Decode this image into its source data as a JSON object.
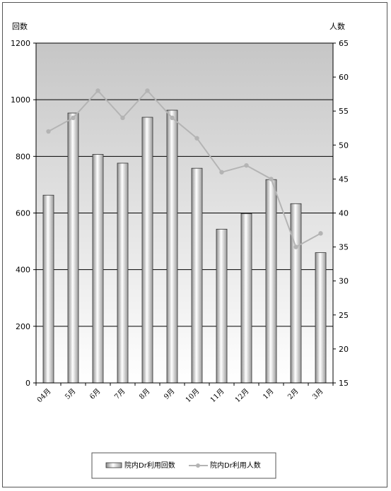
{
  "chart_data": {
    "type": "bar+line",
    "categories": [
      "04月",
      "5月",
      "6月",
      "7月",
      "8月",
      "9月",
      "10月",
      "11月",
      "12月",
      "1月",
      "2月",
      "3月"
    ],
    "series": [
      {
        "name": "院内Dr利用回数",
        "type": "bar",
        "axis": "left",
        "values": [
          663,
          953,
          807,
          776,
          938,
          963,
          758,
          543,
          598,
          718,
          633,
          460
        ]
      },
      {
        "name": "院内Dr利用人数",
        "type": "line",
        "axis": "right",
        "values": [
          52,
          54,
          58,
          54,
          58,
          54,
          51,
          46,
          47,
          45,
          35,
          37
        ]
      }
    ],
    "ylabel_left": "回数",
    "ylabel_right": "人数",
    "ylim_left": [
      0,
      1200
    ],
    "ylim_right": [
      15,
      65
    ],
    "yticks_left": [
      0,
      200,
      400,
      600,
      800,
      1000,
      1200
    ],
    "yticks_right": [
      15,
      20,
      25,
      30,
      35,
      40,
      45,
      50,
      55,
      60,
      65
    ],
    "grid": true,
    "legend": "bottom-center",
    "colors": {
      "plot_top": "#c8c8c8",
      "plot_bottom": "#ffffff",
      "line": "#b4b4b4",
      "bar_edge": "#333333"
    }
  }
}
